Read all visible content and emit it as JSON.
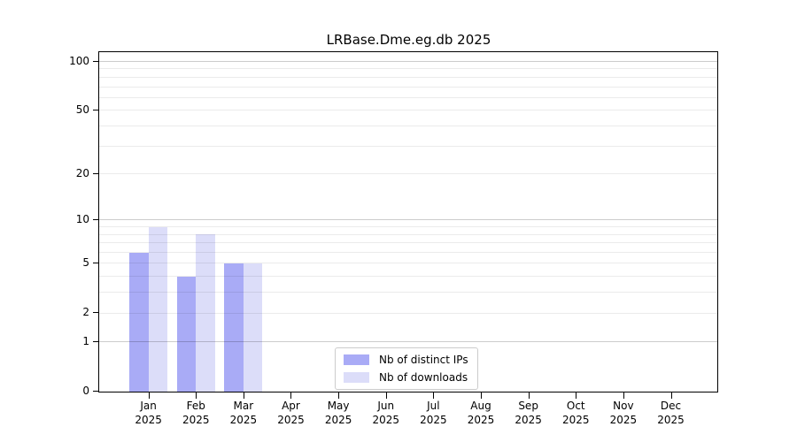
{
  "figure": {
    "background": "#ffffff"
  },
  "chart_data": {
    "type": "bar",
    "title": "LRBase.Dme.eg.db 2025",
    "categories": [
      "Jan",
      "Feb",
      "Mar",
      "Apr",
      "May",
      "Jun",
      "Jul",
      "Aug",
      "Sep",
      "Oct",
      "Nov",
      "Dec"
    ],
    "x_tick_second_line": "2025",
    "series": [
      {
        "name": "Nb of distinct IPs",
        "color": "#a9abf6",
        "values": [
          6,
          4,
          5,
          0,
          0,
          0,
          0,
          0,
          0,
          0,
          0,
          0
        ]
      },
      {
        "name": "Nb of downloads",
        "color": "#dcddf9",
        "values": [
          9,
          8,
          5,
          0,
          0,
          0,
          0,
          0,
          0,
          0,
          0,
          0
        ]
      }
    ],
    "y_axis": {
      "scale": "log10(1+y)",
      "tick_values": [
        100,
        50,
        20,
        10,
        5,
        2,
        1,
        0
      ],
      "minor_gridline_values": [
        2,
        3,
        4,
        5,
        6,
        7,
        8,
        9,
        20,
        30,
        40,
        50,
        60,
        70,
        80,
        90
      ],
      "major_gridline_values": [
        1,
        10,
        100
      ],
      "ylim": [
        0,
        114
      ]
    },
    "legend": {
      "position": "lower-center"
    },
    "grid": "horizontal-only"
  },
  "colors": {
    "axis": "#000000",
    "grid_minor": "rgba(0,0,0,0.08)",
    "grid_major": "rgba(0,0,0,0.20)",
    "legend_border": "#cccccc",
    "text": "#000000"
  }
}
